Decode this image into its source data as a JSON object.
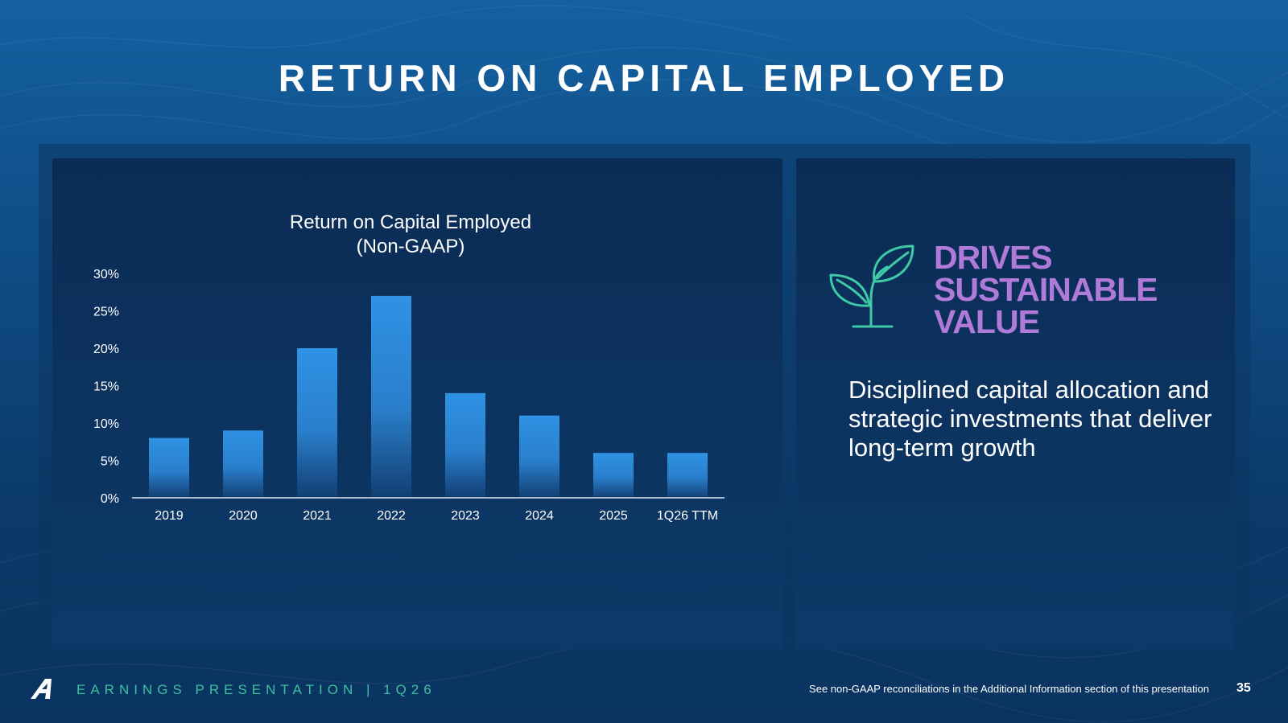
{
  "slide": {
    "title": "RETURN ON CAPITAL EMPLOYED",
    "footer_left": "EARNINGS PRESENTATION  |  1Q26",
    "footer_note": "See non-GAAP reconciliations in the Additional Information section of this presentation",
    "page_number": "35"
  },
  "chart_data": {
    "type": "bar",
    "title_lines": [
      "Return on Capital Employed",
      "(Non-GAAP)"
    ],
    "categories": [
      "2019",
      "2020",
      "2021",
      "2022",
      "2023",
      "2024",
      "2025",
      "1Q26 TTM"
    ],
    "values": [
      8,
      9,
      20,
      27,
      14,
      11,
      6,
      6
    ],
    "value_unit": "%",
    "ylim": [
      0,
      30
    ],
    "yticks": [
      0,
      5,
      10,
      15,
      20,
      25,
      30
    ],
    "ytick_labels": [
      "0%",
      "5%",
      "10%",
      "15%",
      "20%",
      "25%",
      "30%"
    ],
    "xlabel": "",
    "ylabel": "",
    "grid": false,
    "bar_color": "#2e8fe0"
  },
  "value_panel": {
    "heading_lines": [
      "DRIVES",
      "SUSTAINABLE",
      "VALUE"
    ],
    "description": "Disciplined capital allocation and strategic investments that deliver long-term growth",
    "icon": "sprout-icon",
    "heading_color": "#b07ad8",
    "icon_color": "#3fc9a6"
  },
  "colors": {
    "background": "#0f4d86",
    "panel": "#0b2c55",
    "accent_teal": "#3fbfa0"
  }
}
